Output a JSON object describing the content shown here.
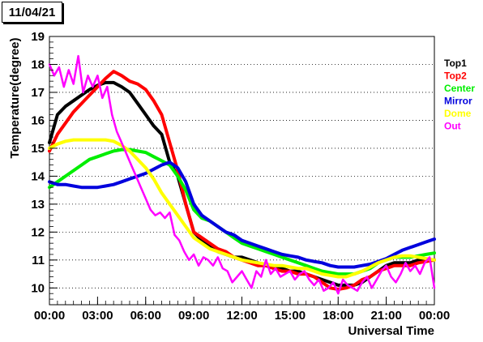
{
  "date_label": "11/04/21",
  "chart_data": {
    "type": "line",
    "title": "",
    "xlabel": "Universal Time",
    "ylabel": "Temperature(degree)",
    "xlim": [
      0,
      24
    ],
    "ylim": [
      9.4,
      19
    ],
    "grid": "horizontal dotted",
    "legend_placement": "right",
    "x_ticks": [
      "00:00",
      "03:00",
      "06:00",
      "09:00",
      "12:00",
      "15:00",
      "18:00",
      "21:00",
      "00:00"
    ],
    "x_tick_values": [
      0,
      3,
      6,
      9,
      12,
      15,
      18,
      21,
      24
    ],
    "y_ticks": [
      10,
      11,
      12,
      13,
      14,
      15,
      16,
      17,
      18,
      19
    ],
    "series": [
      {
        "name": "Top1",
        "color": "#000000",
        "width": 4,
        "x": [
          0,
          0.5,
          1,
          1.5,
          2,
          2.5,
          3,
          3.5,
          4,
          4.5,
          5,
          5.5,
          6,
          6.5,
          7,
          7.5,
          8,
          8.5,
          9,
          9.5,
          10,
          10.5,
          11,
          11.5,
          12,
          12.5,
          13,
          13.5,
          14,
          14.5,
          15,
          15.5,
          16,
          16.5,
          17,
          17.5,
          18,
          18.5,
          19,
          19.5,
          20,
          20.5,
          21,
          21.5,
          22,
          22.5,
          23,
          23.5,
          24
        ],
        "y": [
          15.2,
          16.2,
          16.5,
          16.7,
          16.9,
          17.1,
          17.25,
          17.35,
          17.35,
          17.2,
          17.0,
          16.6,
          16.2,
          15.8,
          15.5,
          14.5,
          14.0,
          13.0,
          12.0,
          11.7,
          11.5,
          11.3,
          11.2,
          11.1,
          11.1,
          11.0,
          10.9,
          10.8,
          10.7,
          10.7,
          10.6,
          10.6,
          10.5,
          10.4,
          10.3,
          10.2,
          10.1,
          10.1,
          10.1,
          10.2,
          10.4,
          10.6,
          10.8,
          10.9,
          10.9,
          10.9,
          11.0,
          11.0,
          11.0
        ]
      },
      {
        "name": "Top2",
        "color": "#ff0000",
        "width": 4,
        "x": [
          0,
          0.5,
          1,
          1.5,
          2,
          2.5,
          3,
          3.5,
          4,
          4.5,
          5,
          5.5,
          6,
          6.5,
          7,
          7.5,
          8,
          8.5,
          9,
          9.5,
          10,
          10.5,
          11,
          11.5,
          12,
          12.5,
          13,
          13.5,
          14,
          14.5,
          15,
          15.5,
          16,
          16.5,
          17,
          17.5,
          18,
          18.5,
          19,
          19.5,
          20,
          20.5,
          21,
          21.5,
          22,
          22.5,
          23,
          23.5,
          24
        ],
        "y": [
          14.9,
          15.5,
          15.9,
          16.3,
          16.6,
          16.9,
          17.2,
          17.5,
          17.75,
          17.6,
          17.4,
          17.3,
          17.1,
          16.7,
          16.2,
          15.2,
          14.2,
          13.0,
          12.0,
          11.8,
          11.6,
          11.4,
          11.3,
          11.1,
          11.0,
          10.9,
          10.8,
          10.8,
          10.7,
          10.6,
          10.6,
          10.5,
          10.5,
          10.4,
          10.2,
          10.0,
          9.95,
          10.0,
          10.1,
          10.3,
          10.4,
          10.6,
          10.7,
          10.8,
          10.8,
          10.8,
          10.9,
          10.95,
          11.0
        ]
      },
      {
        "name": "Center",
        "color": "#00ee00",
        "width": 4,
        "x": [
          0,
          0.5,
          1,
          1.5,
          2,
          2.5,
          3,
          3.5,
          4,
          4.5,
          5,
          5.5,
          6,
          6.5,
          7,
          7.5,
          8,
          8.5,
          9,
          9.5,
          10,
          10.5,
          11,
          11.5,
          12,
          12.5,
          13,
          13.5,
          14,
          14.5,
          15,
          15.5,
          16,
          16.5,
          17,
          17.5,
          18,
          18.5,
          19,
          19.5,
          20,
          20.5,
          21,
          21.5,
          22,
          22.5,
          23,
          23.5,
          24
        ],
        "y": [
          13.6,
          13.8,
          14.0,
          14.2,
          14.4,
          14.6,
          14.7,
          14.8,
          14.9,
          14.95,
          14.95,
          14.9,
          14.85,
          14.7,
          14.55,
          14.4,
          14.0,
          13.5,
          12.8,
          12.5,
          12.4,
          12.2,
          12.0,
          11.8,
          11.6,
          11.5,
          11.4,
          11.3,
          11.2,
          11.1,
          11.0,
          10.9,
          10.8,
          10.7,
          10.6,
          10.55,
          10.5,
          10.5,
          10.5,
          10.6,
          10.7,
          10.9,
          11.0,
          11.1,
          11.1,
          11.1,
          11.15,
          11.2,
          11.25
        ]
      },
      {
        "name": "Mirror",
        "color": "#0000dd",
        "width": 4,
        "x": [
          0,
          0.5,
          1,
          1.5,
          2,
          2.5,
          3,
          3.5,
          4,
          4.5,
          5,
          5.5,
          6,
          6.5,
          7,
          7.5,
          8,
          8.5,
          9,
          9.5,
          10,
          10.5,
          11,
          11.5,
          12,
          12.5,
          13,
          13.5,
          14,
          14.5,
          15,
          15.5,
          16,
          16.5,
          17,
          17.5,
          18,
          18.5,
          19,
          19.5,
          20,
          20.5,
          21,
          21.5,
          22,
          22.5,
          23,
          23.5,
          24
        ],
        "y": [
          13.8,
          13.7,
          13.7,
          13.65,
          13.6,
          13.6,
          13.6,
          13.65,
          13.7,
          13.8,
          13.9,
          14.0,
          14.1,
          14.25,
          14.4,
          14.5,
          14.3,
          13.8,
          13.0,
          12.6,
          12.4,
          12.2,
          12.0,
          11.9,
          11.7,
          11.6,
          11.5,
          11.4,
          11.3,
          11.2,
          11.15,
          11.1,
          11.0,
          10.95,
          10.9,
          10.8,
          10.75,
          10.75,
          10.75,
          10.8,
          10.85,
          10.95,
          11.05,
          11.2,
          11.35,
          11.45,
          11.55,
          11.65,
          11.75
        ]
      },
      {
        "name": "Dome",
        "color": "#ffff00",
        "width": 4,
        "x": [
          0,
          0.5,
          1,
          1.5,
          2,
          2.5,
          3,
          3.5,
          4,
          4.5,
          5,
          5.5,
          6,
          6.5,
          7,
          7.5,
          8,
          8.5,
          9,
          9.5,
          10,
          10.5,
          11,
          11.5,
          12,
          12.5,
          13,
          13.5,
          14,
          14.5,
          15,
          15.5,
          16,
          16.5,
          17,
          17.5,
          18,
          18.5,
          19,
          19.5,
          20,
          20.5,
          21,
          21.5,
          22,
          22.5,
          23,
          23.5,
          24
        ],
        "y": [
          15.0,
          15.15,
          15.25,
          15.3,
          15.3,
          15.3,
          15.3,
          15.3,
          15.25,
          15.1,
          14.9,
          14.6,
          14.3,
          13.9,
          13.4,
          13.0,
          12.6,
          12.2,
          11.8,
          11.6,
          11.4,
          11.3,
          11.2,
          11.1,
          11.0,
          10.95,
          10.9,
          10.85,
          10.8,
          10.8,
          10.75,
          10.7,
          10.7,
          10.6,
          10.5,
          10.45,
          10.4,
          10.4,
          10.5,
          10.6,
          10.75,
          10.9,
          11.0,
          11.1,
          11.15,
          11.15,
          11.1,
          11.05,
          11.0
        ]
      },
      {
        "name": "Out",
        "color": "#ff00ff",
        "width": 2.5,
        "x": [
          0,
          0.3,
          0.6,
          0.9,
          1.2,
          1.5,
          1.8,
          2.1,
          2.4,
          2.7,
          3.0,
          3.3,
          3.6,
          3.9,
          4.2,
          4.5,
          4.8,
          5.1,
          5.4,
          5.7,
          6.0,
          6.3,
          6.6,
          6.9,
          7.2,
          7.5,
          7.8,
          8.1,
          8.4,
          8.7,
          9.0,
          9.3,
          9.6,
          9.9,
          10.2,
          10.5,
          10.8,
          11.1,
          11.4,
          11.7,
          12.0,
          12.3,
          12.6,
          12.9,
          13.2,
          13.5,
          13.8,
          14.1,
          14.4,
          14.7,
          15.0,
          15.3,
          15.6,
          15.9,
          16.2,
          16.5,
          16.8,
          17.1,
          17.4,
          17.7,
          18.0,
          18.3,
          18.6,
          18.9,
          19.2,
          19.5,
          19.8,
          20.1,
          20.4,
          20.7,
          21.0,
          21.3,
          21.6,
          21.9,
          22.2,
          22.5,
          22.8,
          23.1,
          23.4,
          23.7,
          24.0
        ],
        "y": [
          18.0,
          17.6,
          17.9,
          17.2,
          17.8,
          17.3,
          18.3,
          17.0,
          17.6,
          17.2,
          17.6,
          16.8,
          17.2,
          16.2,
          15.6,
          15.2,
          14.8,
          14.4,
          14.0,
          13.6,
          13.2,
          12.8,
          12.6,
          12.7,
          12.5,
          12.7,
          11.9,
          11.7,
          11.3,
          11.0,
          11.2,
          10.8,
          11.1,
          11.0,
          10.8,
          11.1,
          10.7,
          10.6,
          10.2,
          10.4,
          10.6,
          10.3,
          10.0,
          10.6,
          10.4,
          11.0,
          10.5,
          10.7,
          10.4,
          10.5,
          10.6,
          10.3,
          10.5,
          10.6,
          10.3,
          10.1,
          10.3,
          9.9,
          10.0,
          10.2,
          9.8,
          10.3,
          10.1,
          10.0,
          9.9,
          10.2,
          10.4,
          10.0,
          10.3,
          10.6,
          10.8,
          10.4,
          10.2,
          10.5,
          10.9,
          10.6,
          10.8,
          10.5,
          10.9,
          11.1,
          10.0
        ]
      }
    ]
  }
}
